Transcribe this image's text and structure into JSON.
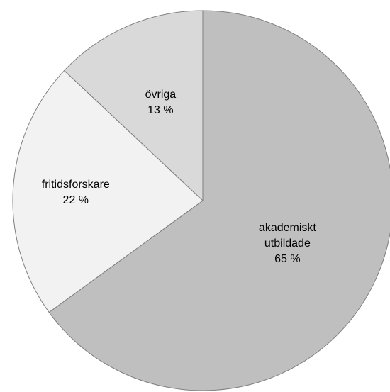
{
  "chart_data": {
    "type": "pie",
    "categories": [
      "akademiskt utbildade",
      "fritidsforskare",
      "övriga"
    ],
    "values": [
      65,
      22,
      13
    ],
    "value_labels": [
      "65 %",
      "22 %",
      "13 %"
    ],
    "colors": [
      "#bfbfbf",
      "#f2f2f2",
      "#d9d9d9"
    ]
  }
}
